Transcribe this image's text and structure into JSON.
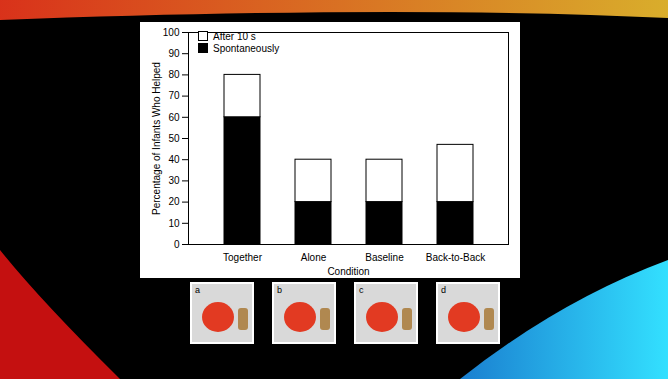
{
  "chart_data": {
    "type": "bar",
    "stacked": true,
    "categories": [
      "Together",
      "Alone",
      "Baseline",
      "Back-to-Back"
    ],
    "series": [
      {
        "name": "After 10 s",
        "color": "#ffffff",
        "values": [
          20,
          20,
          20,
          27
        ]
      },
      {
        "name": "Spontaneously",
        "color": "#000000",
        "values": [
          60,
          20,
          20,
          20
        ]
      }
    ],
    "x_label": "Condition",
    "y_label": "Percentage of Infants Who Helped",
    "ylim": [
      0,
      100
    ],
    "yticks": [
      0,
      10,
      20,
      30,
      40,
      50,
      60,
      70,
      80,
      90,
      100
    ],
    "grid": false,
    "legend": "top-left",
    "annotations": [
      "a",
      "b",
      "c",
      "d"
    ]
  }
}
